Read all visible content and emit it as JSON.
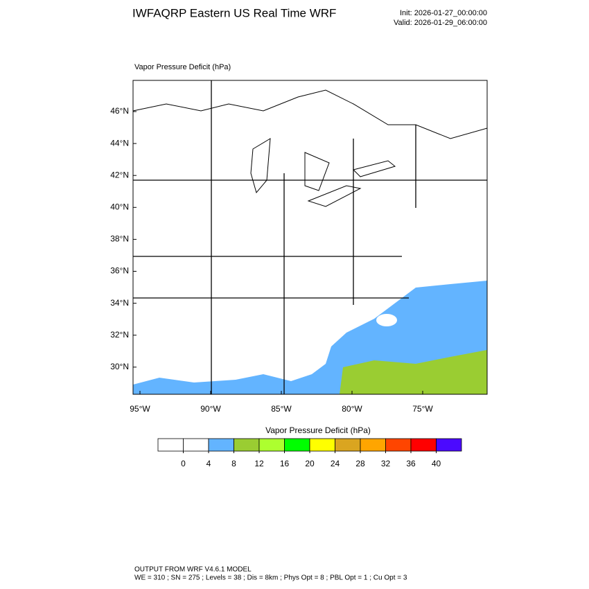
{
  "header": {
    "title": "IWFAQRP Eastern US Real Time WRF",
    "init": "Init: 2026-01-27_00:00:00",
    "valid": "Valid: 2026-01-29_06:00:00"
  },
  "map": {
    "label": "Vapor Pressure Deficit   (hPa)",
    "lat_labels": [
      "46°N",
      "44°N",
      "42°N",
      "40°N",
      "38°N",
      "36°N",
      "34°N",
      "32°N",
      "30°N"
    ],
    "lon_labels": [
      "95°W",
      "90°W",
      "85°W",
      "80°W",
      "75°W"
    ]
  },
  "colorbar": {
    "title": "Vapor Pressure Deficit  (hPa)",
    "colors": [
      "#ffffff",
      "#ffffff",
      "#63b4ff",
      "#9acd32",
      "#adff2f",
      "#00ff00",
      "#ffff00",
      "#daa520",
      "#ffa500",
      "#ff4500",
      "#ff0000",
      "#4b0aff"
    ],
    "ticks": [
      0,
      4,
      8,
      12,
      16,
      20,
      24,
      28,
      32,
      36,
      40
    ]
  },
  "footer": {
    "line1": "OUTPUT FROM WRF V4.6.1 MODEL",
    "line2": "WE = 310 ; SN = 275 ; Levels = 38 ; Dis = 8km ; Phys Opt = 8 ; PBL Opt = 1 ; Cu Opt = 3"
  }
}
